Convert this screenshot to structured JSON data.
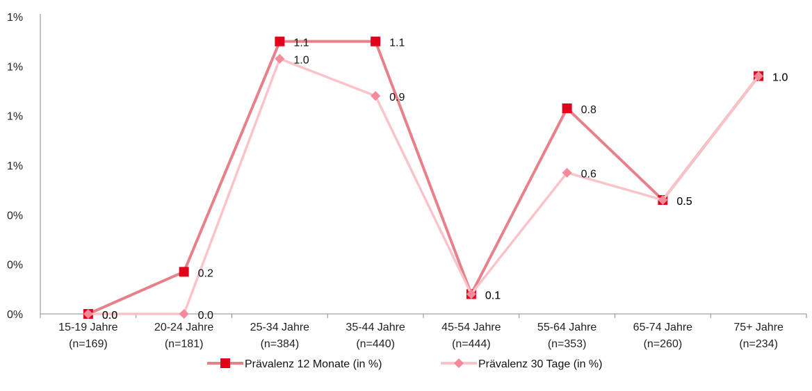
{
  "chart_data": {
    "type": "line",
    "categories": [
      [
        "15-19 Jahre",
        "(n=169)"
      ],
      [
        "20-24 Jahre",
        "(n=181)"
      ],
      [
        "25-34 Jahre",
        "(n=384)"
      ],
      [
        "35-44 Jahre",
        "(n=440)"
      ],
      [
        "45-54 Jahre",
        "(n=444)"
      ],
      [
        "55-64 Jahre",
        "(n=353)"
      ],
      [
        "65-74 Jahre",
        "(n=260)"
      ],
      [
        "75+ Jahre",
        "(n=234)"
      ]
    ],
    "y_ticks": [
      "0%",
      "0%",
      "0%",
      "1%",
      "1%",
      "1%",
      "1%"
    ],
    "ylim": [
      0,
      1.2
    ],
    "grid": false,
    "legend_position": "bottom",
    "series": [
      {
        "name": "Prävalenz 12 Monate (in %)",
        "values": [
          0.0,
          0.17,
          1.1,
          1.1,
          0.08,
          0.83,
          0.46,
          0.96
        ],
        "labels": [
          "0.0",
          "0.2",
          "1.1",
          "1.1",
          "0.1",
          "0.8",
          "0.5",
          "1.0"
        ],
        "color": "#E8808A",
        "marker_color": "#E3001B",
        "marker": "square"
      },
      {
        "name": "Prävalenz 30 Tage (in %)",
        "values": [
          0.0,
          0.0,
          1.03,
          0.88,
          0.08,
          0.57,
          0.46,
          0.96
        ],
        "labels": [
          "0.0",
          "0.0",
          "1.0",
          "0.9",
          "0.1",
          "0.6",
          "0.5",
          "1.0"
        ],
        "color": "#F8C3C9",
        "marker_color": "#F48A9A",
        "marker": "diamond"
      }
    ]
  }
}
